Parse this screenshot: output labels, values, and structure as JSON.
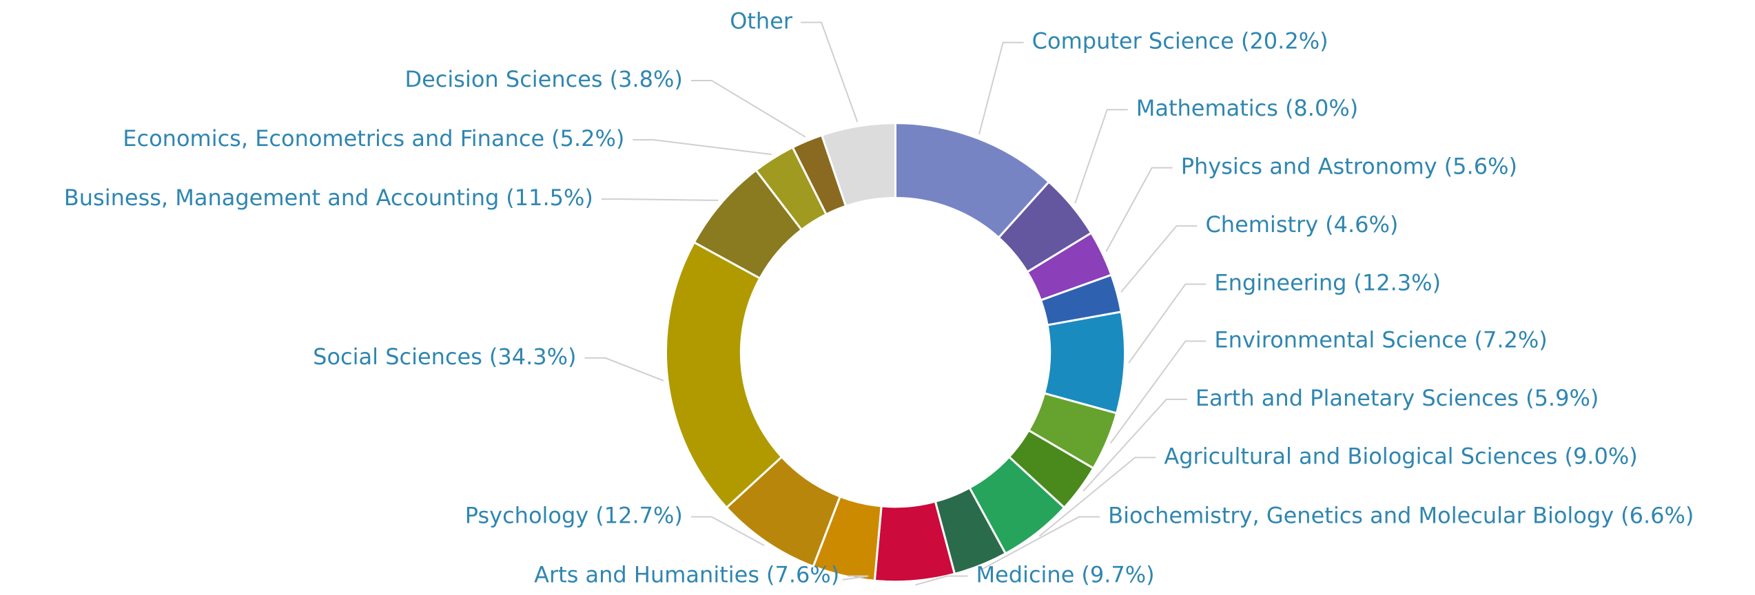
{
  "chart_data": {
    "type": "donut",
    "categories": [
      "Computer Science",
      "Mathematics",
      "Physics and Astronomy",
      "Chemistry",
      "Engineering",
      "Environmental Science",
      "Earth and Planetary Sciences",
      "Agricultural and Biological Sciences",
      "Biochemistry, Genetics and Molecular Biology",
      "Medicine",
      "Arts and Humanities",
      "Psychology",
      "Social Sciences",
      "Business, Management and Accounting",
      "Economics, Econometrics and Finance",
      "Decision Sciences",
      "Other"
    ],
    "values": [
      20.2,
      8.0,
      5.6,
      4.6,
      12.3,
      7.2,
      5.9,
      9.0,
      6.6,
      9.7,
      7.6,
      12.7,
      34.3,
      11.5,
      5.2,
      3.8,
      9
    ],
    "value_labels": [
      "(20.2%)",
      "(8.0%)",
      "(5.6%)",
      "(4.6%)",
      "(12.3%)",
      "(7.2%)",
      "(5.9%)",
      "(9.0%)",
      "(6.6%)",
      "(9.7%)",
      "(7.6%)",
      "(12.7%)",
      "(34.3%)",
      "(11.5%)",
      "(5.2%)",
      "(3.8%)",
      null
    ],
    "colors": [
      "#7784c4",
      "#6556a0",
      "#8b3fb8",
      "#2e62b0",
      "#1a8bbf",
      "#66a22e",
      "#4a8a1d",
      "#26a45c",
      "#2a6b4b",
      "#cc0a3c",
      "#cc8a00",
      "#b8860b",
      "#b09a00",
      "#8a7a20",
      "#a09a20",
      "#8a6a20",
      "#dcdcdc"
    ]
  }
}
